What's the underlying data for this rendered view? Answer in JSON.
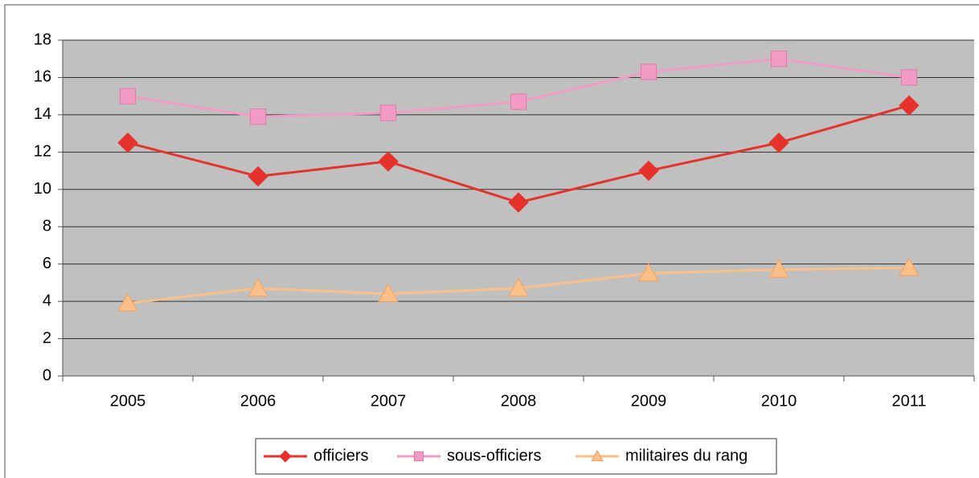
{
  "chart_data": {
    "type": "line",
    "categories": [
      "2005",
      "2006",
      "2007",
      "2008",
      "2009",
      "2010",
      "2011"
    ],
    "series": [
      {
        "name": "officiers",
        "color": "#e5322a",
        "marker": "diamond",
        "values": [
          12.5,
          10.7,
          11.5,
          9.3,
          11.0,
          12.5,
          14.5
        ]
      },
      {
        "name": "sous-officiers",
        "color": "#f29bc4",
        "marker": "square",
        "values": [
          15.0,
          13.9,
          14.1,
          14.7,
          16.3,
          17.0,
          16.0
        ]
      },
      {
        "name": "militaires du rang",
        "color": "#fbbf8a",
        "marker": "triangle",
        "values": [
          3.9,
          4.7,
          4.4,
          4.7,
          5.5,
          5.7,
          5.8
        ]
      }
    ],
    "ylim": [
      0,
      18
    ],
    "yticks": [
      0,
      2,
      4,
      6,
      8,
      10,
      12,
      14,
      16,
      18
    ],
    "grid": true,
    "legend": "bottom"
  }
}
